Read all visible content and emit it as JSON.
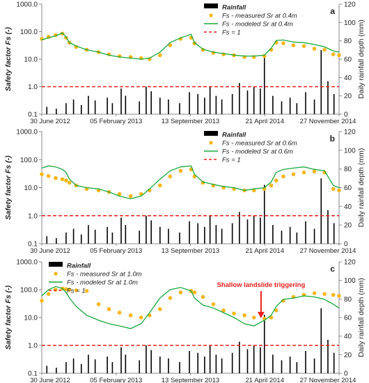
{
  "colors": {
    "rainfall": "#000000",
    "measured": "#f6b619",
    "modeled": "#19a83c",
    "fs1": "#e8201c",
    "annotation": "#e8201c",
    "axis": "#888888"
  },
  "shared": {
    "ylabel_left": "Safety factor Fs (-)",
    "ylabel_right": "Daily rainfall depth (mm)",
    "y_ticks_left": [
      "1000.0",
      "100.0",
      "10.0",
      "1.0",
      "0.1"
    ],
    "y_ticks_right": [
      "120",
      "100",
      "80",
      "60",
      "40",
      "20",
      "0"
    ],
    "x_tick_labels": [
      "30 June 2012",
      "05 February 2013",
      "13 September 2013",
      "21 April 2014",
      "27 November 2014"
    ]
  },
  "chart_data": [
    {
      "type": "line",
      "panel": "a",
      "title": "",
      "xlabel": "",
      "ylabel": "Safety factor Fs (-)",
      "ylabel_right": "Daily rainfall depth (mm)",
      "yscale": "log",
      "ylim": [
        0.1,
        1000
      ],
      "ylim_right": [
        0,
        120
      ],
      "x_range": [
        "2012-06-30",
        "2014-11-27"
      ],
      "legend": [
        "Rainfall",
        "Fs - measured Sr at 0.4m",
        "Fs - modeled Sr at 0.4m",
        "Fs = 1"
      ],
      "legend_position": "top-center",
      "series": [
        {
          "name": "Fs - measured Sr at 0.4m",
          "style": "markers",
          "x": [
            "2012-06-30",
            "2012-07-20",
            "2012-08-10",
            "2012-08-30",
            "2012-09-10",
            "2012-09-20",
            "2012-10-10",
            "2012-11-10",
            "2012-12-15",
            "2013-01-15",
            "2013-02-15",
            "2013-03-20",
            "2013-04-20",
            "2013-05-15",
            "2013-06-15",
            "2013-07-15",
            "2013-08-15",
            "2013-09-15",
            "2013-09-25",
            "2013-10-20",
            "2013-11-20",
            "2013-12-20",
            "2014-01-20",
            "2014-02-20",
            "2014-03-20",
            "2014-04-20",
            "2014-05-10",
            "2014-05-25",
            "2014-06-15",
            "2014-07-15",
            "2014-08-15",
            "2014-09-15",
            "2014-10-15",
            "2014-11-10",
            "2014-11-27"
          ],
          "values": [
            55,
            65,
            75,
            85,
            60,
            40,
            28,
            22,
            18,
            15,
            13,
            12,
            11,
            10,
            14,
            32,
            55,
            60,
            38,
            22,
            17,
            15,
            14,
            12,
            12,
            13,
            22,
            40,
            38,
            32,
            30,
            24,
            22,
            15,
            14
          ]
        },
        {
          "name": "Fs - modeled Sr at 0.4m",
          "style": "line",
          "x": [
            "2012-06-30",
            "2012-07-20",
            "2012-08-10",
            "2012-08-30",
            "2012-09-10",
            "2012-09-20",
            "2012-10-10",
            "2012-11-10",
            "2012-12-15",
            "2013-01-15",
            "2013-02-15",
            "2013-03-20",
            "2013-04-20",
            "2013-05-15",
            "2013-06-15",
            "2013-07-15",
            "2013-08-15",
            "2013-09-15",
            "2013-09-25",
            "2013-10-20",
            "2013-11-20",
            "2013-12-20",
            "2014-01-20",
            "2014-02-20",
            "2014-03-20",
            "2014-04-20",
            "2014-05-10",
            "2014-05-25",
            "2014-06-15",
            "2014-07-15",
            "2014-08-15",
            "2014-09-15",
            "2014-10-15",
            "2014-11-10",
            "2014-11-27"
          ],
          "values": [
            50,
            60,
            70,
            90,
            65,
            40,
            30,
            22,
            18,
            14,
            12,
            11,
            10,
            11,
            18,
            40,
            60,
            80,
            40,
            23,
            18,
            16,
            14,
            13,
            13,
            14,
            25,
            48,
            50,
            42,
            40,
            34,
            28,
            20,
            18
          ]
        },
        {
          "name": "Fs = 1",
          "style": "dashed",
          "x": [
            "2012-06-30",
            "2014-11-27"
          ],
          "values": [
            1,
            1
          ]
        },
        {
          "name": "Rainfall",
          "style": "bars",
          "axis": "right",
          "x": [
            "2012-07-15",
            "2012-08-12",
            "2012-09-10",
            "2012-10-02",
            "2012-10-25",
            "2012-11-15",
            "2012-12-05",
            "2013-01-10",
            "2013-01-25",
            "2013-02-20",
            "2013-03-05",
            "2013-04-15",
            "2013-05-05",
            "2013-05-20",
            "2013-06-15",
            "2013-07-10",
            "2013-08-12",
            "2013-09-10",
            "2013-10-05",
            "2013-10-25",
            "2013-11-10",
            "2013-11-28",
            "2013-12-15",
            "2014-01-15",
            "2014-02-05",
            "2014-03-01",
            "2014-03-20",
            "2014-04-08",
            "2014-04-20",
            "2014-05-15",
            "2014-06-10",
            "2014-07-05",
            "2014-07-25",
            "2014-08-20",
            "2014-09-15",
            "2014-10-05",
            "2014-10-25",
            "2014-11-12"
          ],
          "values": [
            8,
            6,
            12,
            16,
            10,
            20,
            15,
            18,
            12,
            28,
            20,
            14,
            30,
            25,
            18,
            16,
            12,
            24,
            22,
            18,
            30,
            20,
            16,
            22,
            34,
            26,
            30,
            28,
            63,
            20,
            14,
            18,
            12,
            24,
            16,
            70,
            36,
            22
          ]
        }
      ]
    },
    {
      "type": "line",
      "panel": "b",
      "title": "",
      "xlabel": "",
      "ylabel": "Safety factor Fs (-)",
      "ylabel_right": "Daily rainfall depth (mm)",
      "yscale": "log",
      "ylim": [
        0.1,
        1000
      ],
      "ylim_right": [
        0,
        120
      ],
      "x_range": [
        "2012-06-30",
        "2014-11-27"
      ],
      "legend": [
        "Rainfall",
        "Fs - measured Sr at 0.6m",
        "Fs - modeled Sr at 0.6m",
        "Fs = 1"
      ],
      "legend_position": "top-center",
      "series": [
        {
          "name": "Fs - measured Sr at 0.6m",
          "style": "markers",
          "x": [
            "2012-06-30",
            "2012-07-20",
            "2012-08-10",
            "2012-08-30",
            "2012-09-10",
            "2012-09-20",
            "2012-10-10",
            "2012-11-10",
            "2012-12-15",
            "2013-01-15",
            "2013-02-15",
            "2013-03-20",
            "2013-04-20",
            "2013-05-15",
            "2013-06-15",
            "2013-07-15",
            "2013-08-15",
            "2013-09-15",
            "2013-09-25",
            "2013-10-20",
            "2013-11-20",
            "2013-12-20",
            "2014-01-20",
            "2014-02-20",
            "2014-03-20",
            "2014-04-20",
            "2014-05-10",
            "2014-05-25",
            "2014-06-15",
            "2014-07-15",
            "2014-08-15",
            "2014-09-15",
            "2014-10-15",
            "2014-11-10",
            "2014-11-27"
          ],
          "values": [
            30,
            26,
            22,
            20,
            18,
            15,
            12,
            9,
            8,
            7,
            6,
            5,
            6,
            8,
            12,
            25,
            40,
            45,
            25,
            15,
            12,
            10,
            9,
            8,
            8,
            9,
            12,
            18,
            25,
            30,
            35,
            38,
            35,
            9,
            8
          ]
        },
        {
          "name": "Fs - modeled Sr at 0.6m",
          "style": "line",
          "x": [
            "2012-06-30",
            "2012-07-20",
            "2012-08-10",
            "2012-08-30",
            "2012-09-10",
            "2012-09-20",
            "2012-10-10",
            "2012-11-10",
            "2012-12-15",
            "2013-01-15",
            "2013-02-15",
            "2013-03-20",
            "2013-04-20",
            "2013-05-15",
            "2013-06-15",
            "2013-07-15",
            "2013-08-15",
            "2013-09-15",
            "2013-09-25",
            "2013-10-20",
            "2013-11-20",
            "2013-12-20",
            "2014-01-20",
            "2014-02-20",
            "2014-03-20",
            "2014-04-20",
            "2014-05-10",
            "2014-05-25",
            "2014-06-15",
            "2014-07-15",
            "2014-08-15",
            "2014-09-15",
            "2014-10-15",
            "2014-11-10",
            "2014-11-27"
          ],
          "values": [
            50,
            60,
            55,
            45,
            35,
            20,
            12,
            10,
            9,
            7,
            5,
            4,
            5,
            9,
            20,
            40,
            55,
            60,
            30,
            16,
            13,
            11,
            10,
            8,
            9,
            10,
            16,
            35,
            45,
            50,
            55,
            45,
            40,
            12,
            10
          ]
        },
        {
          "name": "Fs = 1",
          "style": "dashed",
          "x": [
            "2012-06-30",
            "2014-11-27"
          ],
          "values": [
            1,
            1
          ]
        },
        {
          "name": "Rainfall",
          "style": "bars",
          "axis": "right",
          "x": [
            "2012-07-15",
            "2012-08-12",
            "2012-09-10",
            "2012-10-02",
            "2012-10-25",
            "2012-11-15",
            "2012-12-05",
            "2013-01-10",
            "2013-01-25",
            "2013-02-20",
            "2013-03-05",
            "2013-04-15",
            "2013-05-05",
            "2013-05-20",
            "2013-06-15",
            "2013-07-10",
            "2013-08-12",
            "2013-09-10",
            "2013-10-05",
            "2013-10-25",
            "2013-11-10",
            "2013-11-28",
            "2013-12-15",
            "2014-01-15",
            "2014-02-05",
            "2014-03-01",
            "2014-03-20",
            "2014-04-08",
            "2014-04-20",
            "2014-05-15",
            "2014-06-10",
            "2014-07-05",
            "2014-07-25",
            "2014-08-20",
            "2014-09-15",
            "2014-10-05",
            "2014-10-25",
            "2014-11-12"
          ],
          "values": [
            8,
            6,
            12,
            16,
            10,
            20,
            15,
            18,
            12,
            28,
            20,
            14,
            30,
            25,
            18,
            16,
            12,
            24,
            22,
            18,
            30,
            20,
            16,
            22,
            34,
            26,
            30,
            28,
            63,
            20,
            14,
            18,
            12,
            24,
            16,
            70,
            36,
            22
          ]
        }
      ]
    },
    {
      "type": "line",
      "panel": "c",
      "title": "",
      "xlabel": "",
      "ylabel": "Safety factor Fs (-)",
      "ylabel_right": "Daily rainfall depth (mm)",
      "yscale": "log",
      "ylim": [
        0.1,
        1000
      ],
      "ylim_right": [
        0,
        120
      ],
      "x_range": [
        "2012-06-30",
        "2014-11-27"
      ],
      "legend": [
        "Rainfall",
        "Fs - measured Sr at 1.0m",
        "Fs - modeled Sr at 1.0m",
        "Fs = 1"
      ],
      "legend_position": "top-left",
      "annotation": {
        "text": "Shallow landslide triggering",
        "x": "2014-04-10",
        "y": 9
      },
      "series": [
        {
          "name": "Fs - measured Sr at 1.0m",
          "style": "markers",
          "x": [
            "2012-06-30",
            "2012-07-20",
            "2012-08-10",
            "2012-08-30",
            "2012-09-10",
            "2012-09-20",
            "2012-10-10",
            "2012-11-10",
            "2012-12-15",
            "2013-01-15",
            "2013-02-15",
            "2013-03-20",
            "2013-04-20",
            "2013-05-15",
            "2013-06-15",
            "2013-07-15",
            "2013-08-15",
            "2013-09-15",
            "2013-09-25",
            "2013-10-20",
            "2013-11-20",
            "2013-12-20",
            "2014-01-20",
            "2014-02-20",
            "2014-03-20",
            "2014-04-20",
            "2014-05-10",
            "2014-05-25",
            "2014-06-15",
            "2014-07-15",
            "2014-08-15",
            "2014-09-15",
            "2014-10-15",
            "2014-11-10",
            "2014-11-27"
          ],
          "values": [
            40,
            70,
            100,
            110,
            105,
            100,
            95,
            90,
            30,
            20,
            15,
            12,
            10,
            12,
            20,
            50,
            80,
            90,
            80,
            55,
            30,
            18,
            14,
            12,
            10,
            9,
            10,
            18,
            40,
            55,
            65,
            75,
            70,
            65,
            60
          ]
        },
        {
          "name": "Fs - modeled Sr at 1.0m",
          "style": "line",
          "x": [
            "2012-06-30",
            "2012-07-20",
            "2012-08-10",
            "2012-08-30",
            "2012-09-10",
            "2012-09-20",
            "2012-10-10",
            "2012-11-10",
            "2012-12-15",
            "2013-01-15",
            "2013-02-15",
            "2013-03-20",
            "2013-04-20",
            "2013-05-15",
            "2013-06-15",
            "2013-07-15",
            "2013-08-15",
            "2013-09-15",
            "2013-09-25",
            "2013-10-20",
            "2013-11-20",
            "2013-12-20",
            "2014-01-20",
            "2014-02-20",
            "2014-03-20",
            "2014-04-20",
            "2014-05-10",
            "2014-05-25",
            "2014-06-15",
            "2014-07-15",
            "2014-08-15",
            "2014-09-15",
            "2014-10-15",
            "2014-11-10",
            "2014-11-27"
          ],
          "values": [
            60,
            100,
            130,
            110,
            80,
            50,
            25,
            12,
            8,
            6,
            5,
            4,
            6,
            15,
            50,
            100,
            120,
            90,
            50,
            28,
            22,
            15,
            10,
            6,
            5,
            8,
            12,
            25,
            45,
            50,
            60,
            55,
            45,
            30,
            22
          ]
        },
        {
          "name": "Fs = 1",
          "style": "dashed",
          "x": [
            "2012-06-30",
            "2014-11-27"
          ],
          "values": [
            1,
            1
          ]
        },
        {
          "name": "Rainfall",
          "style": "bars",
          "axis": "right",
          "x": [
            "2012-07-15",
            "2012-08-12",
            "2012-09-10",
            "2012-10-02",
            "2012-10-25",
            "2012-11-15",
            "2012-12-05",
            "2013-01-10",
            "2013-01-25",
            "2013-02-20",
            "2013-03-05",
            "2013-04-15",
            "2013-05-05",
            "2013-05-20",
            "2013-06-15",
            "2013-07-10",
            "2013-08-12",
            "2013-09-10",
            "2013-10-05",
            "2013-10-25",
            "2013-11-10",
            "2013-11-28",
            "2013-12-15",
            "2014-01-15",
            "2014-02-05",
            "2014-03-01",
            "2014-03-20",
            "2014-04-08",
            "2014-04-20",
            "2014-05-15",
            "2014-06-10",
            "2014-07-05",
            "2014-07-25",
            "2014-08-20",
            "2014-09-15",
            "2014-10-05",
            "2014-10-25",
            "2014-11-12"
          ],
          "values": [
            8,
            6,
            12,
            16,
            10,
            20,
            15,
            18,
            12,
            28,
            20,
            14,
            30,
            25,
            18,
            16,
            12,
            24,
            22,
            18,
            30,
            20,
            16,
            22,
            34,
            26,
            30,
            28,
            63,
            20,
            14,
            18,
            12,
            24,
            16,
            70,
            36,
            22
          ]
        }
      ]
    }
  ]
}
